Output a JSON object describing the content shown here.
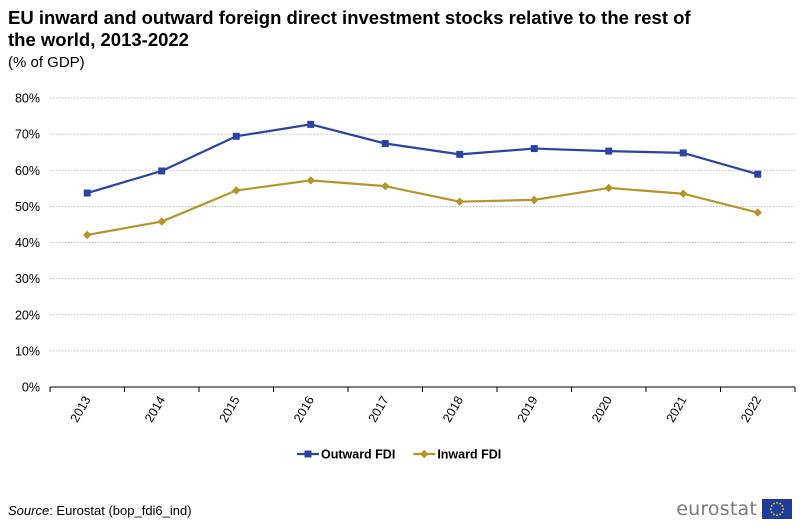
{
  "title": "EU inward and outward foreign direct investment stocks relative to the rest of the world, 2013-2022",
  "subtitle": "(% of GDP)",
  "source": {
    "label": "Source",
    "text": ": Eurostat (bop_fdi6_ind)"
  },
  "logo": {
    "text": "eurostat",
    "flag_icon": "eu-flag-icon"
  },
  "chart_data": {
    "type": "line",
    "x": [
      "2013",
      "2014",
      "2015",
      "2016",
      "2017",
      "2018",
      "2019",
      "2020",
      "2021",
      "2022"
    ],
    "ylim": [
      0,
      80
    ],
    "yticks": [
      0,
      10,
      20,
      30,
      40,
      50,
      60,
      70,
      80
    ],
    "ytick_labels": [
      "0%",
      "10%",
      "20%",
      "30%",
      "40%",
      "50%",
      "60%",
      "70%",
      "80%"
    ],
    "grid": true,
    "legend_position": "bottom-center",
    "series": [
      {
        "name": "Outward FDI",
        "color": "#2b44a4",
        "marker": "square",
        "values": [
          53.7,
          59.8,
          69.4,
          72.7,
          67.4,
          64.4,
          66.0,
          65.3,
          64.8,
          58.9
        ]
      },
      {
        "name": "Inward FDI",
        "color": "#b5952a",
        "marker": "diamond",
        "values": [
          42.1,
          45.8,
          54.4,
          57.2,
          55.6,
          51.3,
          51.8,
          55.1,
          53.5,
          48.3
        ]
      }
    ]
  }
}
